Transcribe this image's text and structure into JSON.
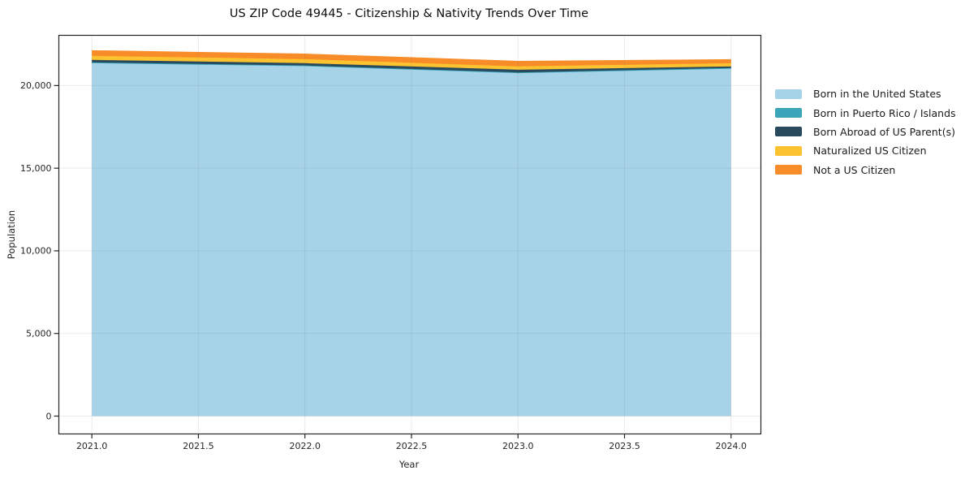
{
  "chart_data": {
    "type": "area",
    "stacked": true,
    "title": "US ZIP Code 49445 - Citizenship & Nativity Trends Over Time",
    "xlabel": "Year",
    "ylabel": "Population",
    "x": [
      2021,
      2022,
      2023,
      2024
    ],
    "series": [
      {
        "name": "Born in the United States",
        "color": "#A6D3E8",
        "values": [
          21375,
          21190,
          20765,
          21025
        ]
      },
      {
        "name": "Born in Puerto Rico / Islands",
        "color": "#3AA5B9",
        "values": [
          25,
          25,
          30,
          40
        ]
      },
      {
        "name": "Born Abroad of US Parent(s)",
        "color": "#29495C",
        "values": [
          155,
          140,
          165,
          90
        ]
      },
      {
        "name": "Naturalized US Citizen",
        "color": "#FCC230",
        "values": [
          245,
          245,
          200,
          195
        ]
      },
      {
        "name": "Not a US Citizen",
        "color": "#F78C28",
        "values": [
          295,
          290,
          290,
          200
        ]
      }
    ],
    "totals": [
      22095,
      21890,
      21450,
      21550
    ],
    "xlim": [
      2020.845,
      2024.14
    ],
    "ylim": [
      -1080,
      23040
    ],
    "x_ticks": {
      "values": [
        2021.0,
        2021.5,
        2022.0,
        2022.5,
        2023.0,
        2023.5,
        2024.0
      ],
      "labels": [
        "2021.0",
        "2021.5",
        "2022.0",
        "2022.5",
        "2023.0",
        "2023.5",
        "2024.0"
      ]
    },
    "y_ticks": {
      "values": [
        0,
        5000,
        10000,
        15000,
        20000
      ],
      "labels": [
        "0",
        "5,000",
        "10,000",
        "15,000",
        "20,000"
      ]
    },
    "grid": true,
    "legend_position": "right"
  }
}
